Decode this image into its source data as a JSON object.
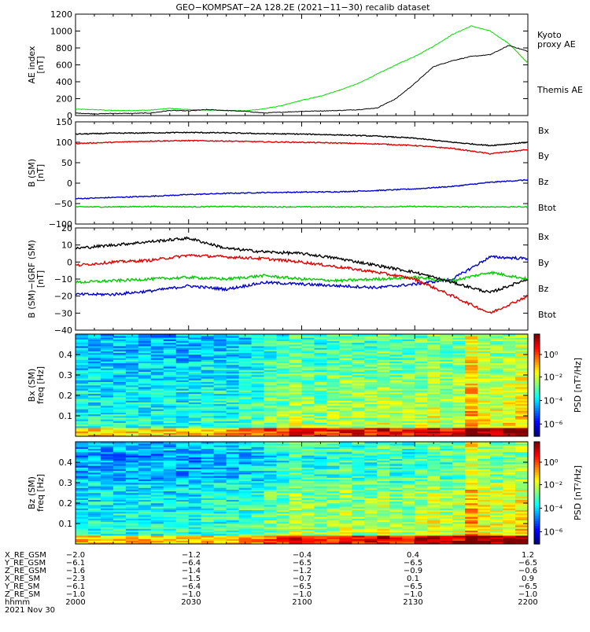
{
  "title": "GEO−KOMPSAT−2A 128.2E (2021−11−30) recalib dataset",
  "chart_data": [
    {
      "type": "line",
      "panel": "ae",
      "ylabel_lines": [
        "AE index",
        "[nT]"
      ],
      "ylim": [
        0,
        1200
      ],
      "yticks": [
        0,
        200,
        400,
        600,
        800,
        1000,
        1200
      ],
      "x_minutes": [
        0,
        5,
        10,
        15,
        20,
        25,
        30,
        35,
        40,
        45,
        50,
        55,
        60,
        65,
        70,
        75,
        80,
        85,
        90,
        95,
        100,
        105,
        110,
        115,
        120
      ],
      "series": [
        {
          "name": "Kyoto proxy AE",
          "label_lines": [
            "Kyoto",
            "proxy AE"
          ],
          "color": "#00dd00",
          "values": [
            75,
            70,
            60,
            60,
            65,
            85,
            70,
            65,
            60,
            55,
            80,
            120,
            180,
            230,
            300,
            380,
            490,
            600,
            700,
            820,
            960,
            1060,
            1000,
            850,
            620
          ]
        },
        {
          "name": "Themis AE",
          "label_lines": [
            "Themis AE"
          ],
          "color": "#000000",
          "values": [
            30,
            20,
            25,
            25,
            30,
            60,
            55,
            70,
            60,
            50,
            30,
            40,
            50,
            55,
            60,
            70,
            90,
            200,
            380,
            580,
            650,
            700,
            720,
            830,
            760
          ]
        }
      ]
    },
    {
      "type": "line",
      "panel": "b",
      "ylabel_lines": [
        "B (SM)",
        "[nT]"
      ],
      "ylim": [
        -100,
        150
      ],
      "yticks": [
        -100,
        -50,
        0,
        50,
        100,
        150
      ],
      "x_minutes": [
        0,
        10,
        20,
        30,
        40,
        50,
        60,
        70,
        80,
        90,
        100,
        110,
        120
      ],
      "series": [
        {
          "name": "Bx",
          "color": "#0000cc",
          "values": [
            -38,
            -35,
            -32,
            -28,
            -25,
            -23,
            -22,
            -21,
            -18,
            -14,
            -8,
            2,
            8
          ]
        },
        {
          "name": "By",
          "color": "#00cc00",
          "values": [
            -58,
            -58,
            -57,
            -58,
            -57,
            -58,
            -58,
            -58,
            -58,
            -57,
            -58,
            -58,
            -58
          ]
        },
        {
          "name": "Bz",
          "color": "#dd0000",
          "values": [
            97,
            100,
            103,
            104,
            103,
            101,
            100,
            98,
            96,
            92,
            85,
            72,
            82
          ]
        },
        {
          "name": "Btot",
          "color": "#000000",
          "values": [
            120,
            122,
            123,
            124,
            123,
            121,
            120,
            118,
            115,
            110,
            100,
            92,
            100
          ]
        }
      ]
    },
    {
      "type": "line",
      "panel": "db",
      "ylabel_lines": [
        "B (SM)−IGRF (SM)",
        "[nT]"
      ],
      "ylim": [
        -40,
        20
      ],
      "yticks": [
        -40,
        -30,
        -20,
        -10,
        0,
        10,
        20
      ],
      "x_minutes": [
        0,
        10,
        20,
        30,
        40,
        50,
        60,
        70,
        80,
        90,
        100,
        110,
        120
      ],
      "series": [
        {
          "name": "Bx",
          "color": "#0000cc",
          "values": [
            -19,
            -19,
            -17,
            -14,
            -16,
            -12,
            -13,
            -14,
            -15,
            -13,
            -10,
            3,
            2
          ]
        },
        {
          "name": "By",
          "color": "#00cc00",
          "values": [
            -12,
            -11,
            -10,
            -9,
            -10,
            -8,
            -10,
            -11,
            -10,
            -9,
            -11,
            -6,
            -10
          ]
        },
        {
          "name": "Bz",
          "color": "#dd0000",
          "values": [
            -2,
            0,
            1,
            4,
            3,
            2,
            0,
            -3,
            -6,
            -10,
            -20,
            -30,
            -20
          ]
        },
        {
          "name": "Btot",
          "color": "#000000",
          "values": [
            8,
            10,
            12,
            14,
            8,
            6,
            5,
            2,
            -2,
            -6,
            -12,
            -18,
            -10
          ]
        }
      ]
    },
    {
      "type": "heatmap",
      "panel": "bx_spec",
      "ylabel_lines": [
        "Bx (SM)",
        "freq [Hz]"
      ],
      "ylim": [
        0,
        0.5
      ],
      "yticks": [
        0.1,
        0.2,
        0.3,
        0.4
      ],
      "colorbar_label": "PSD [nT²/Hz]",
      "colorbar_ticks": [
        "10⁰",
        "10⁻²",
        "10⁻⁴",
        "10⁻⁶"
      ]
    },
    {
      "type": "heatmap",
      "panel": "bz_spec",
      "ylabel_lines": [
        "Bz (SM)",
        "freq [Hz]"
      ],
      "ylim": [
        0,
        0.5
      ],
      "yticks": [
        0.1,
        0.2,
        0.3,
        0.4
      ],
      "colorbar_label": "PSD [nT²/Hz]",
      "colorbar_ticks": [
        "10⁰",
        "10⁻²",
        "10⁻⁴",
        "10⁻⁶"
      ]
    }
  ],
  "footer": {
    "rows": [
      {
        "label": "X_RE_GSM",
        "values": [
          "−2.0",
          "−1.2",
          "−0.4",
          "0.4",
          "1.2"
        ]
      },
      {
        "label": "Y_RE_GSM",
        "values": [
          "−6.1",
          "−6.4",
          "−6.5",
          "−6.5",
          "−6.5"
        ]
      },
      {
        "label": "Z_RE_GSM",
        "values": [
          "−1.6",
          "−1.4",
          "−1.2",
          "−0.9",
          "−0.6"
        ]
      },
      {
        "label": "X_RE_SM",
        "values": [
          "−2.3",
          "−1.5",
          "−0.7",
          "0.1",
          "0.9"
        ]
      },
      {
        "label": "Y_RE_SM",
        "values": [
          "−6.1",
          "−6.4",
          "−6.5",
          "−6.5",
          "−6.5"
        ]
      },
      {
        "label": "Z_RE_SM",
        "values": [
          "−1.0",
          "−1.0",
          "−1.0",
          "−1.0",
          "−1.0"
        ]
      },
      {
        "label": "hhmm",
        "values": [
          "2000",
          "2030",
          "2100",
          "2130",
          "2200"
        ]
      }
    ],
    "date": "2021 Nov 30"
  }
}
